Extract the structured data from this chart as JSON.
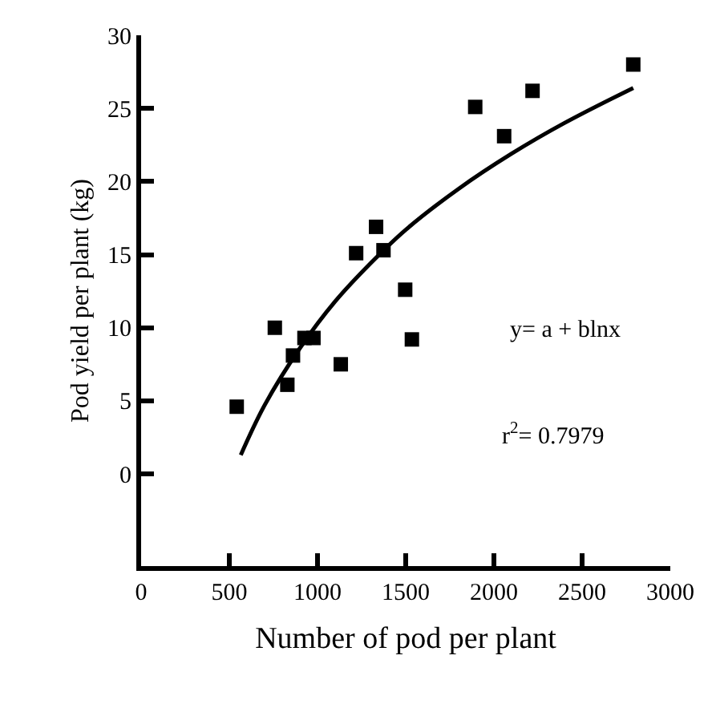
{
  "chart_data": {
    "type": "scatter",
    "xlabel": "Number of pod per plant",
    "ylabel": "Pod yield per plant (kg)",
    "xlim": [
      0,
      3000
    ],
    "xticks": [
      0,
      500,
      1000,
      1500,
      2000,
      2500,
      3000
    ],
    "ylim": [
      -6.3,
      30
    ],
    "yticks": [
      0,
      5,
      10,
      15,
      20,
      25,
      30
    ],
    "series": [
      {
        "type": "line",
        "marker": "none",
        "color": "#000000",
        "line_style": "solid",
        "x": [
          565,
          700,
          900,
          1100,
          1300,
          1500,
          1800,
          2100,
          2400,
          2790
        ],
        "values": [
          1.3,
          4.7,
          8.6,
          11.8,
          14.4,
          16.7,
          19.5,
          21.9,
          24.0,
          26.4
        ]
      },
      {
        "marker": "square",
        "color": "#000000",
        "x": [
          542,
          758,
          829,
          861,
          926,
          977,
          1132,
          1219,
          1332,
          1374,
          1497,
          1535,
          1894,
          2058,
          2219,
          2790
        ],
        "values": [
          4.6,
          10.0,
          6.1,
          8.1,
          9.3,
          9.3,
          7.5,
          15.1,
          16.9,
          15.3,
          12.6,
          9.2,
          25.1,
          23.1,
          26.2,
          28.0
        ]
      }
    ],
    "annotations": [
      "y= a + blnx",
      "r$^{2}$= 0.7979"
    ]
  }
}
